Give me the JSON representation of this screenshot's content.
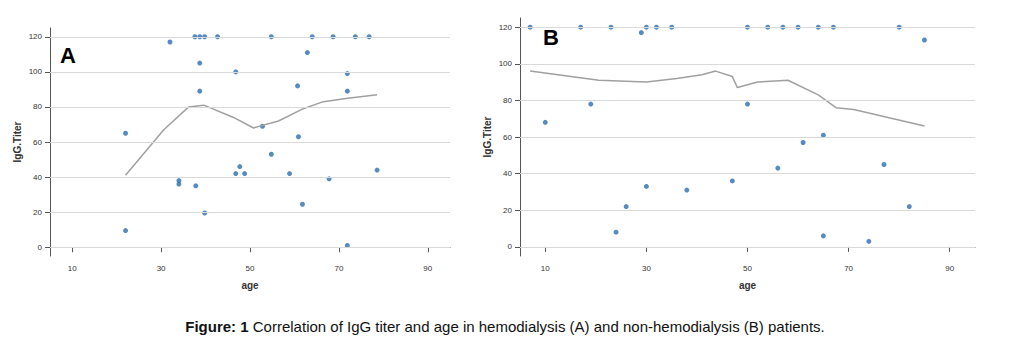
{
  "chart_data": [
    {
      "type": "scatter",
      "annotation": "A",
      "x_label": "age",
      "y_label": "IgG.Titer",
      "xlim": [
        5,
        95
      ],
      "xticks": [
        10,
        30,
        50,
        70,
        90
      ],
      "ylim": [
        -5,
        125
      ],
      "yticks": [
        0,
        20,
        40,
        60,
        80,
        100,
        120
      ],
      "grid": true,
      "series": [
        {
          "type": "scatter",
          "color": "#2a6eb0",
          "marker": "circle",
          "x": [
            22,
            22,
            32,
            34,
            34,
            37.6,
            38.7,
            39.8,
            38.7,
            38.7,
            37.8,
            39.8,
            42.7,
            46.8,
            46.8,
            47.7,
            48.8,
            52.8,
            54.8,
            54.8,
            58.9,
            60.7,
            60.9,
            61.8,
            62.9,
            64,
            68.7,
            67.8,
            71.9,
            71.9,
            71.9,
            73.7,
            76.8,
            78.6
          ],
          "values": [
            65,
            9.5,
            117,
            38,
            36,
            120,
            120,
            120,
            105,
            89,
            35,
            19.5,
            120,
            100,
            42,
            46,
            42,
            69,
            120,
            53,
            42,
            92,
            63,
            24.5,
            111,
            120,
            120,
            39,
            99,
            89,
            1,
            120,
            120,
            44
          ]
        },
        {
          "type": "line",
          "color": "#a0a0a0",
          "line_style": "solid",
          "x": [
            22,
            30.6,
            36.2,
            39.6,
            46.3,
            50.8,
            56.4,
            62,
            66.5,
            72,
            78.6
          ],
          "values": [
            41,
            67,
            80,
            81,
            74,
            68,
            72,
            79,
            83,
            85,
            87
          ]
        }
      ]
    },
    {
      "type": "scatter",
      "annotation": "B",
      "x_label": "age",
      "y_label": "IgG.Titer",
      "xlim": [
        5,
        95
      ],
      "xticks": [
        10,
        30,
        50,
        70,
        90
      ],
      "ylim": [
        -5,
        125
      ],
      "yticks": [
        0,
        20,
        40,
        60,
        80,
        100,
        120
      ],
      "grid": true,
      "series": [
        {
          "type": "scatter",
          "color": "#2a6eb0",
          "marker": "circle",
          "x": [
            7,
            10,
            17,
            19,
            23,
            24,
            26,
            29,
            30,
            32,
            30,
            35,
            38,
            47,
            50,
            50,
            54,
            57,
            56,
            60,
            61,
            64,
            65,
            65,
            67,
            77,
            74,
            80,
            82,
            85
          ],
          "values": [
            120,
            68,
            120,
            78,
            120,
            8,
            22,
            117,
            120,
            120,
            33,
            120,
            31,
            36,
            120,
            78,
            120,
            120,
            43,
            120,
            57,
            120,
            61,
            6,
            120,
            45,
            3,
            120,
            22,
            113
          ]
        },
        {
          "type": "line",
          "color": "#a0a0a0",
          "line_style": "solid",
          "x": [
            7,
            20.6,
            30,
            36,
            41,
            43.7,
            47,
            48,
            52,
            58,
            64,
            67.5,
            71,
            85
          ],
          "values": [
            96,
            91,
            90,
            92,
            94,
            96,
            93,
            87,
            90,
            91,
            83,
            76,
            75,
            66
          ]
        }
      ]
    }
  ],
  "figure": {
    "label": "Figure: 1",
    "caption": "Correlation of IgG titer and age in hemodialysis (A) and non-hemodialysis (B) patients."
  }
}
